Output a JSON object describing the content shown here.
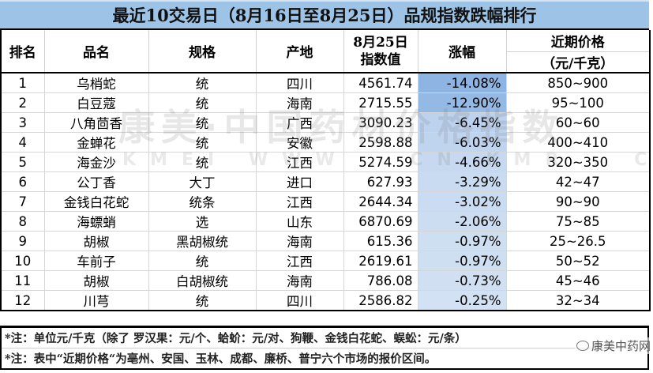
{
  "title": "最近10交易日（8月16日至8月25日）品规指数跌幅排行",
  "columns": {
    "rank": "排名",
    "name": "品名",
    "spec": "规格",
    "origin": "产地",
    "index_line1": "8月25日",
    "index_line2": "指数值",
    "change": "涨幅",
    "price_line1": "近期价格",
    "price_line2": "（元/千克）"
  },
  "rows": [
    {
      "rank": "1",
      "name": "乌梢蛇",
      "spec": "统",
      "origin": "四川",
      "index": "4561.74",
      "change": "-14.08%",
      "price": "850~900",
      "change_color": "#8eb4e3"
    },
    {
      "rank": "2",
      "name": "白豆蔻",
      "spec": "统",
      "origin": "海南",
      "index": "2715.55",
      "change": "-12.90%",
      "price": "95~100",
      "change_color": "#95b9e5"
    },
    {
      "rank": "3",
      "name": "八角茴香",
      "spec": "统",
      "origin": "广西",
      "index": "3090.23",
      "change": "-6.45%",
      "price": "60~60",
      "change_color": "#bcd2ee"
    },
    {
      "rank": "4",
      "name": "金蝉花",
      "spec": "统",
      "origin": "安徽",
      "index": "2598.88",
      "change": "-6.03%",
      "price": "400~410",
      "change_color": "#bfd4ef"
    },
    {
      "rank": "5",
      "name": "海金沙",
      "spec": "统",
      "origin": "江西",
      "index": "5274.59",
      "change": "-4.66%",
      "price": "320~350",
      "change_color": "#c6d9f0"
    },
    {
      "rank": "6",
      "name": "公丁香",
      "spec": "大丁",
      "origin": "进口",
      "index": "627.93",
      "change": "-3.29%",
      "price": "42~47",
      "change_color": "#c9dbf0"
    },
    {
      "rank": "7",
      "name": "金钱白花蛇",
      "spec": "统条",
      "origin": "江西",
      "index": "2644.34",
      "change": "-3.02%",
      "price": "90~90",
      "change_color": "#cadcf1"
    },
    {
      "rank": "8",
      "name": "海螵蛸",
      "spec": "选",
      "origin": "山东",
      "index": "6870.69",
      "change": "-2.06%",
      "price": "75~85",
      "change_color": "#ccddf1"
    },
    {
      "rank": "9",
      "name": "胡椒",
      "spec": "黑胡椒统",
      "origin": "海南",
      "index": "615.36",
      "change": "-0.97%",
      "price": "25~26.5",
      "change_color": "#cfdff2"
    },
    {
      "rank": "10",
      "name": "车前子",
      "spec": "统",
      "origin": "江西",
      "index": "2619.61",
      "change": "-0.97%",
      "price": "50~52",
      "change_color": "#cfdff2"
    },
    {
      "rank": "11",
      "name": "胡椒",
      "spec": "白胡椒统",
      "origin": "海南",
      "index": "786.08",
      "change": "-0.73%",
      "price": "45~46",
      "change_color": "#d0e0f2"
    },
    {
      "rank": "12",
      "name": "川芎",
      "spec": "统",
      "origin": "四川",
      "index": "2586.82",
      "change": "-0.25%",
      "price": "32~34",
      "change_color": "#d2e1f3"
    }
  ],
  "notes": [
    "*注：单位元/千克（除了 罗汉果：元/个、蛤蚧：元/对、狗鞭、金钱白花蛇、蜈蚣：元/条）",
    "*注：表中“近期价格“为亳州、安国、玉林、成都、廉桥、普宁六个市场的报价区间。"
  ],
  "watermark": {
    "text": "康美·中国药材价格指数",
    "sub": "KMEI WWW . CN KMR . COM"
  },
  "brand": "康美中药网",
  "colors": {
    "title_bg": "#9dc3e6",
    "border": "#000000",
    "grid": "#d6d6d6"
  }
}
